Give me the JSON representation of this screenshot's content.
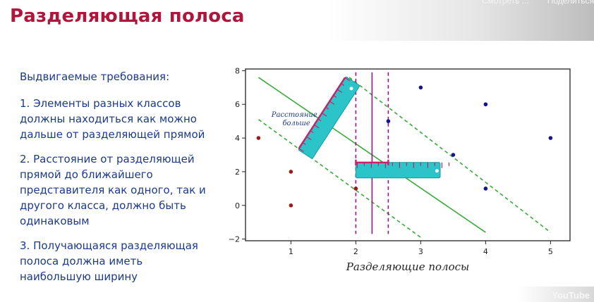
{
  "title": "Разделяющая полоса",
  "youtube": {
    "watch_later": "Смотреть ...",
    "share": "Поделиться",
    "logo": "YouTube"
  },
  "requirements": {
    "heading": "Выдвигаемые требования:",
    "items": [
      "1. Элементы разных классов должны находиться как можно дальше от разделяющей прямой",
      "2. Расстояние от разделяющей прямой до ближайшего представителя как одного, так и другого класса, должно быть одинаковым",
      "3. Получающаяся разделяющая полоса должна иметь наибольшую ширину"
    ]
  },
  "chart_data": {
    "type": "scatter",
    "xlabel": "Разделяющие полосы",
    "annotation": "Расстояние больше",
    "xlim": [
      0.3,
      5.3
    ],
    "ylim": [
      -2.1,
      8.1
    ],
    "xticks": [
      1,
      2,
      3,
      4,
      5
    ],
    "yticks": [
      -2,
      0,
      2,
      4,
      6,
      8
    ],
    "series": [
      {
        "color": "#a01818",
        "points": [
          [
            0.5,
            4
          ],
          [
            1,
            2
          ],
          [
            1,
            0
          ],
          [
            2,
            1
          ]
        ]
      },
      {
        "color": "#14148a",
        "points": [
          [
            3,
            7
          ],
          [
            4,
            6
          ],
          [
            2.5,
            5
          ],
          [
            5,
            4
          ],
          [
            3.5,
            3
          ],
          [
            4,
            1
          ]
        ]
      }
    ],
    "diagonal_lines": [
      {
        "style": "solid",
        "color": "#3aaa3a",
        "from": [
          0.5,
          7.6
        ],
        "to": [
          4,
          -1.6
        ]
      },
      {
        "style": "dashed",
        "color": "#3aaa3a",
        "from": [
          0.5,
          5.1
        ],
        "to": [
          3,
          -1.9
        ]
      },
      {
        "style": "dashed",
        "color": "#3aaa3a",
        "from": [
          1.9,
          7.6
        ],
        "to": [
          5,
          -1.6
        ]
      }
    ],
    "vertical_lines": [
      {
        "style": "solid",
        "color": "#a0108a",
        "x": 2.25
      },
      {
        "style": "dashed",
        "color": "#a0108a",
        "x": 2
      },
      {
        "style": "dashed",
        "color": "#a0108a",
        "x": 2.5
      }
    ],
    "marker_color": "#c8206a",
    "ruler_color": "#2bc4c8"
  }
}
